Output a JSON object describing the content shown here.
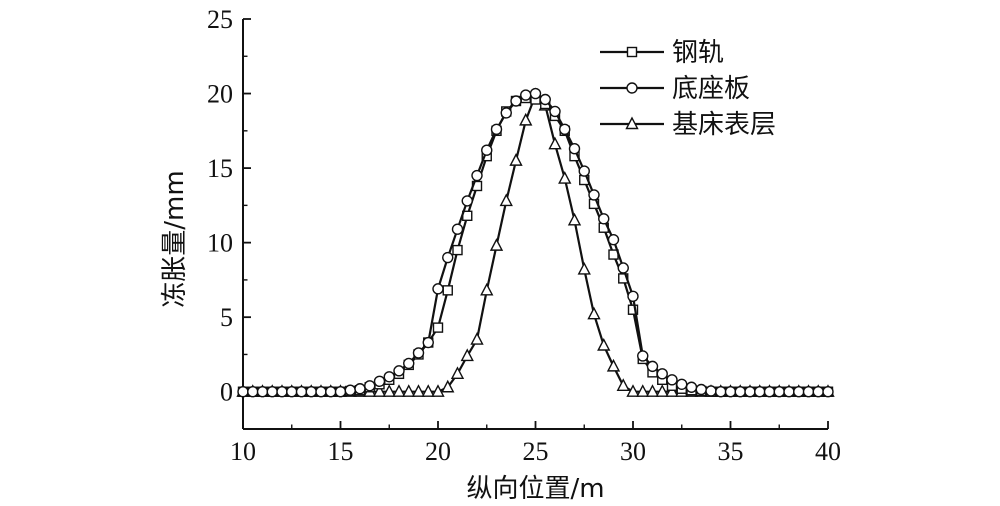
{
  "chart_data": {
    "type": "line",
    "xlabel": "纵向位置/m",
    "ylabel": "冻胀量/mm",
    "xlim": [
      10,
      40
    ],
    "ylim": [
      -2.5,
      25
    ],
    "xticks": [
      10,
      15,
      20,
      25,
      30,
      35,
      40
    ],
    "yticks": [
      0,
      5,
      10,
      15,
      20,
      25
    ],
    "grid": false,
    "legend_position": "top-right",
    "series": [
      {
        "name": "钢轨",
        "marker": "square",
        "x": [
          10,
          10.5,
          11,
          11.5,
          12,
          12.5,
          13,
          13.5,
          14,
          14.5,
          15,
          15.5,
          16,
          16.5,
          17,
          17.5,
          18,
          18.5,
          19,
          19.5,
          20,
          20.5,
          21,
          21.5,
          22,
          22.5,
          23,
          23.5,
          24,
          24.5,
          25,
          25.5,
          26,
          26.5,
          27,
          27.5,
          28,
          28.5,
          29,
          29.5,
          30,
          30.5,
          31,
          31.5,
          32,
          32.5,
          33,
          33.5,
          34,
          34.5,
          35,
          35.5,
          36,
          36.5,
          37,
          37.5,
          38,
          38.5,
          39,
          39.5,
          40
        ],
        "y": [
          0,
          0,
          0,
          0,
          0,
          0,
          0,
          0,
          0,
          0,
          0,
          0.05,
          0.1,
          0.3,
          0.5,
          0.8,
          1.2,
          1.8,
          2.5,
          3.3,
          4.3,
          6.8,
          9.5,
          11.8,
          13.8,
          15.8,
          17.5,
          18.8,
          19.5,
          19.7,
          19.6,
          19.3,
          18.5,
          17.5,
          15.8,
          14.2,
          12.6,
          11,
          9.2,
          7.6,
          5.5,
          2.2,
          1.3,
          0.8,
          0.4,
          0.2,
          0.1,
          0.05,
          0,
          0,
          0,
          0,
          0,
          0,
          0,
          0,
          0,
          0,
          0,
          0,
          0
        ]
      },
      {
        "name": "底座板",
        "marker": "circle",
        "x": [
          10,
          10.5,
          11,
          11.5,
          12,
          12.5,
          13,
          13.5,
          14,
          14.5,
          15,
          15.5,
          16,
          16.5,
          17,
          17.5,
          18,
          18.5,
          19,
          19.5,
          20,
          20.5,
          21,
          21.5,
          22,
          22.5,
          23,
          23.5,
          24,
          24.5,
          25,
          25.5,
          26,
          26.5,
          27,
          27.5,
          28,
          28.5,
          29,
          29.5,
          30,
          30.5,
          31,
          31.5,
          32,
          32.5,
          33,
          33.5,
          34,
          34.5,
          35,
          35.5,
          36,
          36.5,
          37,
          37.5,
          38,
          38.5,
          39,
          39.5,
          40
        ],
        "y": [
          0,
          0,
          0,
          0,
          0,
          0,
          0,
          0,
          0,
          0,
          0,
          0.1,
          0.2,
          0.4,
          0.7,
          1.0,
          1.4,
          1.9,
          2.6,
          3.3,
          6.9,
          9.0,
          10.9,
          12.8,
          14.5,
          16.2,
          17.6,
          18.7,
          19.5,
          19.9,
          20.0,
          19.6,
          18.8,
          17.6,
          16.3,
          14.8,
          13.2,
          11.6,
          10.2,
          8.3,
          6.4,
          2.4,
          1.7,
          1.2,
          0.8,
          0.5,
          0.3,
          0.15,
          0.05,
          0,
          0,
          0,
          0,
          0,
          0,
          0,
          0,
          0,
          0,
          0,
          0
        ]
      },
      {
        "name": "基床表层",
        "marker": "triangle",
        "x": [
          10,
          10.5,
          11,
          11.5,
          12,
          12.5,
          13,
          13.5,
          14,
          14.5,
          15,
          15.5,
          16,
          16.5,
          17,
          17.5,
          18,
          18.5,
          19,
          19.5,
          20,
          20.5,
          21,
          21.5,
          22,
          22.5,
          23,
          23.5,
          24,
          24.5,
          25,
          25.5,
          26,
          26.5,
          27,
          27.5,
          28,
          28.5,
          29,
          29.5,
          30,
          30.5,
          31,
          31.5,
          32,
          32.5,
          33,
          33.5,
          34,
          34.5,
          35,
          35.5,
          36,
          36.5,
          37,
          37.5,
          38,
          38.5,
          39,
          39.5,
          40
        ],
        "y": [
          0,
          0,
          0,
          0,
          0,
          0,
          0,
          0,
          0,
          0,
          0,
          0,
          0,
          0,
          0,
          0,
          0,
          0,
          0,
          0,
          0,
          0.3,
          1.2,
          2.4,
          3.5,
          6.8,
          9.8,
          12.8,
          15.5,
          18.2,
          19.9,
          19.2,
          16.6,
          14.3,
          11.5,
          8.2,
          5.2,
          3.1,
          1.7,
          0.4,
          0,
          0,
          0,
          0,
          0,
          0,
          0,
          0,
          0,
          0,
          0,
          0,
          0,
          0,
          0,
          0,
          0,
          0,
          0,
          0,
          0
        ]
      }
    ]
  }
}
